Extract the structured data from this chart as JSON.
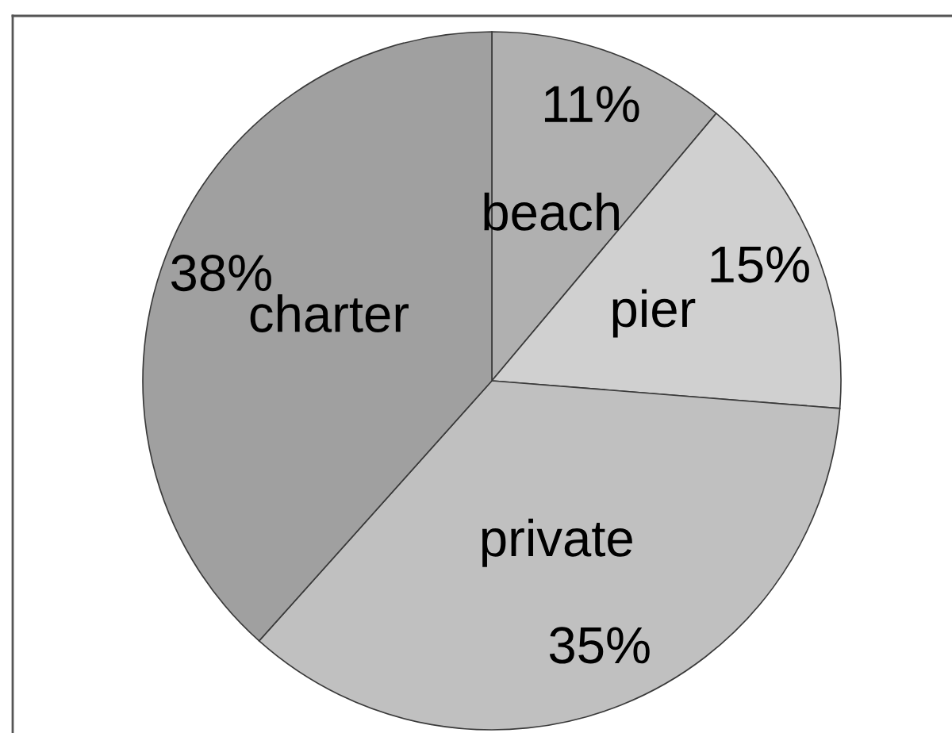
{
  "chart_data": {
    "type": "pie",
    "categories": [
      "beach",
      "pier",
      "private",
      "charter"
    ],
    "values": [
      11,
      15,
      35,
      38
    ],
    "colors": [
      "#b0b0b0",
      "#d0d0d0",
      "#c0c0c0",
      "#a0a0a0"
    ],
    "value_labels": [
      "11%",
      "15%",
      "35%",
      "38%"
    ]
  }
}
